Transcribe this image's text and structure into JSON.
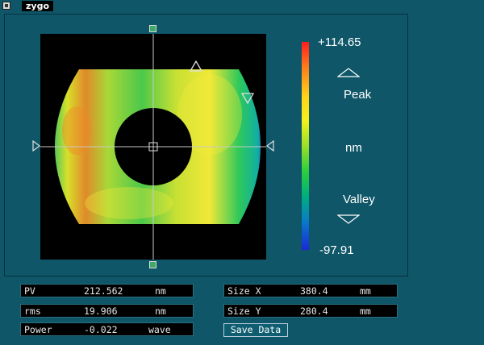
{
  "app": {
    "title": "zygo"
  },
  "colorbar": {
    "max_value": "+114.65",
    "min_value": "-97.91",
    "peak_label": "Peak",
    "unit_label": "nm",
    "valley_label": "Valley"
  },
  "colors": {
    "background": "#0e5668",
    "map_background": "#000000",
    "crosshair": "#c8c8c8",
    "marker": "#3fa968"
  },
  "stats": {
    "pv": {
      "label": "PV",
      "value": "212.562",
      "unit": "nm"
    },
    "rms": {
      "label": "rms",
      "value": "19.906",
      "unit": "nm"
    },
    "power": {
      "label": "Power",
      "value": "-0.022",
      "unit": "wave"
    },
    "size_x": {
      "label": "Size X",
      "value": "380.4",
      "unit": "mm"
    },
    "size_y": {
      "label": "Size Y",
      "value": "280.4",
      "unit": "mm"
    }
  },
  "actions": {
    "save_data": "Save Data"
  }
}
